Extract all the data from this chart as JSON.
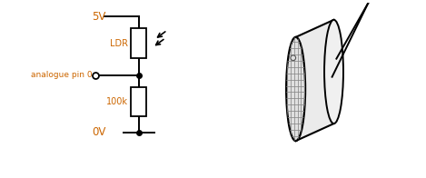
{
  "bg_color": "#ffffff",
  "text_color": "#cc6600",
  "line_color": "#000000",
  "circuit": {
    "vcc_label": "5V",
    "gnd_label": "0V",
    "ldr_label": "LDR",
    "res_label": "100k",
    "pin_label": "analogue pin 0"
  }
}
